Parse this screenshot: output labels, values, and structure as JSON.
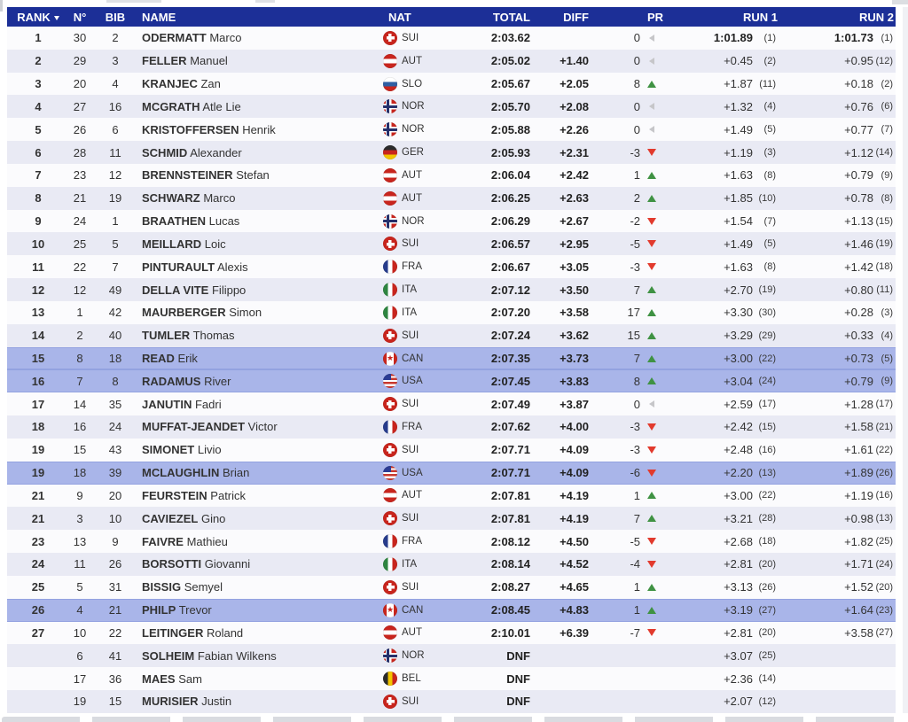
{
  "table": {
    "columns": {
      "rank": "RANK",
      "n": "N°",
      "bib": "BIB",
      "name": "NAME",
      "nat": "NAT",
      "total": "TOTAL",
      "diff": "DIFF",
      "pr": "PR",
      "run1": "RUN 1",
      "run2": "RUN 2"
    },
    "rows": [
      {
        "rank": "1",
        "n": "30",
        "bib": "2",
        "last": "ODERMATT",
        "first": "Marco",
        "nat": "SUI",
        "total": "2:03.62",
        "diff": "",
        "pr": "0",
        "pr_dir": "left",
        "run1": "1:01.89",
        "run1_rank": "(1)",
        "run2": "1:01.73",
        "run2_rank": "(1)",
        "highlight": false,
        "bold": true
      },
      {
        "rank": "2",
        "n": "29",
        "bib": "3",
        "last": "FELLER",
        "first": "Manuel",
        "nat": "AUT",
        "total": "2:05.02",
        "diff": "+1.40",
        "pr": "0",
        "pr_dir": "left",
        "run1": "+0.45",
        "run1_rank": "(2)",
        "run2": "+0.95",
        "run2_rank": "(12)",
        "highlight": false,
        "bold": false
      },
      {
        "rank": "3",
        "n": "20",
        "bib": "4",
        "last": "KRANJEC",
        "first": "Zan",
        "nat": "SLO",
        "total": "2:05.67",
        "diff": "+2.05",
        "pr": "8",
        "pr_dir": "up",
        "run1": "+1.87",
        "run1_rank": "(11)",
        "run2": "+0.18",
        "run2_rank": "(2)",
        "highlight": false,
        "bold": false
      },
      {
        "rank": "4",
        "n": "27",
        "bib": "16",
        "last": "MCGRATH",
        "first": "Atle Lie",
        "nat": "NOR",
        "total": "2:05.70",
        "diff": "+2.08",
        "pr": "0",
        "pr_dir": "left",
        "run1": "+1.32",
        "run1_rank": "(4)",
        "run2": "+0.76",
        "run2_rank": "(6)",
        "highlight": false,
        "bold": false
      },
      {
        "rank": "5",
        "n": "26",
        "bib": "6",
        "last": "KRISTOFFERSEN",
        "first": "Henrik",
        "nat": "NOR",
        "total": "2:05.88",
        "diff": "+2.26",
        "pr": "0",
        "pr_dir": "left",
        "run1": "+1.49",
        "run1_rank": "(5)",
        "run2": "+0.77",
        "run2_rank": "(7)",
        "highlight": false,
        "bold": false
      },
      {
        "rank": "6",
        "n": "28",
        "bib": "11",
        "last": "SCHMID",
        "first": "Alexander",
        "nat": "GER",
        "total": "2:05.93",
        "diff": "+2.31",
        "pr": "-3",
        "pr_dir": "down",
        "run1": "+1.19",
        "run1_rank": "(3)",
        "run2": "+1.12",
        "run2_rank": "(14)",
        "highlight": false,
        "bold": false
      },
      {
        "rank": "7",
        "n": "23",
        "bib": "12",
        "last": "BRENNSTEINER",
        "first": "Stefan",
        "nat": "AUT",
        "total": "2:06.04",
        "diff": "+2.42",
        "pr": "1",
        "pr_dir": "up",
        "run1": "+1.63",
        "run1_rank": "(8)",
        "run2": "+0.79",
        "run2_rank": "(9)",
        "highlight": false,
        "bold": false
      },
      {
        "rank": "8",
        "n": "21",
        "bib": "19",
        "last": "SCHWARZ",
        "first": "Marco",
        "nat": "AUT",
        "total": "2:06.25",
        "diff": "+2.63",
        "pr": "2",
        "pr_dir": "up",
        "run1": "+1.85",
        "run1_rank": "(10)",
        "run2": "+0.78",
        "run2_rank": "(8)",
        "highlight": false,
        "bold": false
      },
      {
        "rank": "9",
        "n": "24",
        "bib": "1",
        "last": "BRAATHEN",
        "first": "Lucas",
        "nat": "NOR",
        "total": "2:06.29",
        "diff": "+2.67",
        "pr": "-2",
        "pr_dir": "down",
        "run1": "+1.54",
        "run1_rank": "(7)",
        "run2": "+1.13",
        "run2_rank": "(15)",
        "highlight": false,
        "bold": false
      },
      {
        "rank": "10",
        "n": "25",
        "bib": "5",
        "last": "MEILLARD",
        "first": "Loic",
        "nat": "SUI",
        "total": "2:06.57",
        "diff": "+2.95",
        "pr": "-5",
        "pr_dir": "down",
        "run1": "+1.49",
        "run1_rank": "(5)",
        "run2": "+1.46",
        "run2_rank": "(19)",
        "highlight": false,
        "bold": false
      },
      {
        "rank": "11",
        "n": "22",
        "bib": "7",
        "last": "PINTURAULT",
        "first": "Alexis",
        "nat": "FRA",
        "total": "2:06.67",
        "diff": "+3.05",
        "pr": "-3",
        "pr_dir": "down",
        "run1": "+1.63",
        "run1_rank": "(8)",
        "run2": "+1.42",
        "run2_rank": "(18)",
        "highlight": false,
        "bold": false
      },
      {
        "rank": "12",
        "n": "12",
        "bib": "49",
        "last": "DELLA VITE",
        "first": "Filippo",
        "nat": "ITA",
        "total": "2:07.12",
        "diff": "+3.50",
        "pr": "7",
        "pr_dir": "up",
        "run1": "+2.70",
        "run1_rank": "(19)",
        "run2": "+0.80",
        "run2_rank": "(11)",
        "highlight": false,
        "bold": false
      },
      {
        "rank": "13",
        "n": "1",
        "bib": "42",
        "last": "MAURBERGER",
        "first": "Simon",
        "nat": "ITA",
        "total": "2:07.20",
        "diff": "+3.58",
        "pr": "17",
        "pr_dir": "up",
        "run1": "+3.30",
        "run1_rank": "(30)",
        "run2": "+0.28",
        "run2_rank": "(3)",
        "highlight": false,
        "bold": false
      },
      {
        "rank": "14",
        "n": "2",
        "bib": "40",
        "last": "TUMLER",
        "first": "Thomas",
        "nat": "SUI",
        "total": "2:07.24",
        "diff": "+3.62",
        "pr": "15",
        "pr_dir": "up",
        "run1": "+3.29",
        "run1_rank": "(29)",
        "run2": "+0.33",
        "run2_rank": "(4)",
        "highlight": false,
        "bold": false
      },
      {
        "rank": "15",
        "n": "8",
        "bib": "18",
        "last": "READ",
        "first": "Erik",
        "nat": "CAN",
        "total": "2:07.35",
        "diff": "+3.73",
        "pr": "7",
        "pr_dir": "up",
        "run1": "+3.00",
        "run1_rank": "(22)",
        "run2": "+0.73",
        "run2_rank": "(5)",
        "highlight": true,
        "bold": false
      },
      {
        "rank": "16",
        "n": "7",
        "bib": "8",
        "last": "RADAMUS",
        "first": "River",
        "nat": "USA",
        "total": "2:07.45",
        "diff": "+3.83",
        "pr": "8",
        "pr_dir": "up",
        "run1": "+3.04",
        "run1_rank": "(24)",
        "run2": "+0.79",
        "run2_rank": "(9)",
        "highlight": true,
        "bold": false
      },
      {
        "rank": "17",
        "n": "14",
        "bib": "35",
        "last": "JANUTIN",
        "first": "Fadri",
        "nat": "SUI",
        "total": "2:07.49",
        "diff": "+3.87",
        "pr": "0",
        "pr_dir": "left",
        "run1": "+2.59",
        "run1_rank": "(17)",
        "run2": "+1.28",
        "run2_rank": "(17)",
        "highlight": false,
        "bold": false
      },
      {
        "rank": "18",
        "n": "16",
        "bib": "24",
        "last": "MUFFAT-JEANDET",
        "first": "Victor",
        "nat": "FRA",
        "total": "2:07.62",
        "diff": "+4.00",
        "pr": "-3",
        "pr_dir": "down",
        "run1": "+2.42",
        "run1_rank": "(15)",
        "run2": "+1.58",
        "run2_rank": "(21)",
        "highlight": false,
        "bold": false
      },
      {
        "rank": "19",
        "n": "15",
        "bib": "43",
        "last": "SIMONET",
        "first": "Livio",
        "nat": "SUI",
        "total": "2:07.71",
        "diff": "+4.09",
        "pr": "-3",
        "pr_dir": "down",
        "run1": "+2.48",
        "run1_rank": "(16)",
        "run2": "+1.61",
        "run2_rank": "(22)",
        "highlight": false,
        "bold": false
      },
      {
        "rank": "19",
        "n": "18",
        "bib": "39",
        "last": "MCLAUGHLIN",
        "first": "Brian",
        "nat": "USA",
        "total": "2:07.71",
        "diff": "+4.09",
        "pr": "-6",
        "pr_dir": "down",
        "run1": "+2.20",
        "run1_rank": "(13)",
        "run2": "+1.89",
        "run2_rank": "(26)",
        "highlight": true,
        "bold": false
      },
      {
        "rank": "21",
        "n": "9",
        "bib": "20",
        "last": "FEURSTEIN",
        "first": "Patrick",
        "nat": "AUT",
        "total": "2:07.81",
        "diff": "+4.19",
        "pr": "1",
        "pr_dir": "up",
        "run1": "+3.00",
        "run1_rank": "(22)",
        "run2": "+1.19",
        "run2_rank": "(16)",
        "highlight": false,
        "bold": false
      },
      {
        "rank": "21",
        "n": "3",
        "bib": "10",
        "last": "CAVIEZEL",
        "first": "Gino",
        "nat": "SUI",
        "total": "2:07.81",
        "diff": "+4.19",
        "pr": "7",
        "pr_dir": "up",
        "run1": "+3.21",
        "run1_rank": "(28)",
        "run2": "+0.98",
        "run2_rank": "(13)",
        "highlight": false,
        "bold": false
      },
      {
        "rank": "23",
        "n": "13",
        "bib": "9",
        "last": "FAIVRE",
        "first": "Mathieu",
        "nat": "FRA",
        "total": "2:08.12",
        "diff": "+4.50",
        "pr": "-5",
        "pr_dir": "down",
        "run1": "+2.68",
        "run1_rank": "(18)",
        "run2": "+1.82",
        "run2_rank": "(25)",
        "highlight": false,
        "bold": false
      },
      {
        "rank": "24",
        "n": "11",
        "bib": "26",
        "last": "BORSOTTI",
        "first": "Giovanni",
        "nat": "ITA",
        "total": "2:08.14",
        "diff": "+4.52",
        "pr": "-4",
        "pr_dir": "down",
        "run1": "+2.81",
        "run1_rank": "(20)",
        "run2": "+1.71",
        "run2_rank": "(24)",
        "highlight": false,
        "bold": false
      },
      {
        "rank": "25",
        "n": "5",
        "bib": "31",
        "last": "BISSIG",
        "first": "Semyel",
        "nat": "SUI",
        "total": "2:08.27",
        "diff": "+4.65",
        "pr": "1",
        "pr_dir": "up",
        "run1": "+3.13",
        "run1_rank": "(26)",
        "run2": "+1.52",
        "run2_rank": "(20)",
        "highlight": false,
        "bold": false
      },
      {
        "rank": "26",
        "n": "4",
        "bib": "21",
        "last": "PHILP",
        "first": "Trevor",
        "nat": "CAN",
        "total": "2:08.45",
        "diff": "+4.83",
        "pr": "1",
        "pr_dir": "up",
        "run1": "+3.19",
        "run1_rank": "(27)",
        "run2": "+1.64",
        "run2_rank": "(23)",
        "highlight": true,
        "bold": false
      },
      {
        "rank": "27",
        "n": "10",
        "bib": "22",
        "last": "LEITINGER",
        "first": "Roland",
        "nat": "AUT",
        "total": "2:10.01",
        "diff": "+6.39",
        "pr": "-7",
        "pr_dir": "down",
        "run1": "+2.81",
        "run1_rank": "(20)",
        "run2": "+3.58",
        "run2_rank": "(27)",
        "highlight": false,
        "bold": false
      },
      {
        "rank": "",
        "n": "6",
        "bib": "41",
        "last": "SOLHEIM",
        "first": "Fabian Wilkens",
        "nat": "NOR",
        "total": "DNF",
        "diff": "",
        "pr": "",
        "pr_dir": "",
        "run1": "+3.07",
        "run1_rank": "(25)",
        "run2": "",
        "run2_rank": "",
        "highlight": false,
        "bold": false
      },
      {
        "rank": "",
        "n": "17",
        "bib": "36",
        "last": "MAES",
        "first": "Sam",
        "nat": "BEL",
        "total": "DNF",
        "diff": "",
        "pr": "",
        "pr_dir": "",
        "run1": "+2.36",
        "run1_rank": "(14)",
        "run2": "",
        "run2_rank": "",
        "highlight": false,
        "bold": false
      },
      {
        "rank": "",
        "n": "19",
        "bib": "15",
        "last": "MURISIER",
        "first": "Justin",
        "nat": "SUI",
        "total": "DNF",
        "diff": "",
        "pr": "",
        "pr_dir": "",
        "run1": "+2.07",
        "run1_rank": "(12)",
        "run2": "",
        "run2_rank": "",
        "highlight": false,
        "bold": false
      }
    ]
  },
  "colors": {
    "header_bg": "#1c2f97",
    "row_odd": "#fbfbfd",
    "row_even": "#e9eaf4",
    "highlight": "#a9b5e9",
    "gain_green": "#3f9243",
    "loss_red": "#e23a2d",
    "neutral_gray": "#c6c6c9"
  }
}
